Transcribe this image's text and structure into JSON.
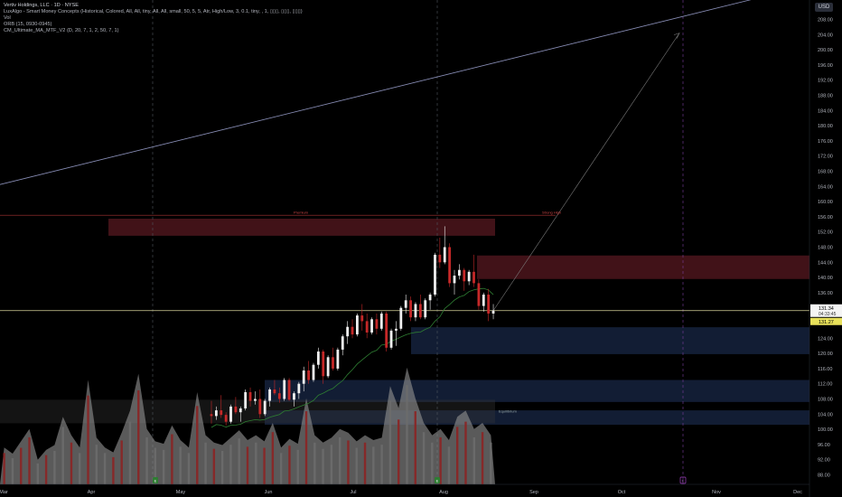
{
  "legend": {
    "title": "Vertiv Holdings, LLC · 1D · NYSE",
    "line1": "LuxAlgo - Smart Money Concepts (Historical, Colored, All, All, tiny, All, All, small, 50, 5, 5, Atr, High/Low, 3, 0.1, tiny, , 1, ▯▯▯, ▯▯▯, ▯▯▯)",
    "line2": "Vol",
    "line3": "ORB (15, 0930-0945)",
    "line4": "CM_Ultimate_MA_MTF_V2 (D, 20, 7, 1, 2, 50, 7, 1)"
  },
  "currency_button": "USD",
  "colors": {
    "bull": "#f0f0f0",
    "bear": "#c62828",
    "supply_zone": "#5c1a22",
    "demand_zone": "#1a2a4a",
    "ma_line": "#2e7d32",
    "trend_line": "#8a8fb8",
    "current_price_line": "#d8d49a",
    "volume_red": "#8b2323",
    "volume_grey": "#8a8a8a"
  },
  "chart_data": {
    "type": "candlestick",
    "ticker": "VRT",
    "exchange": "NYSE",
    "interval": "1D",
    "ylim": [
      86,
      210
    ],
    "y_ticks": [
      "88.00",
      "92.00",
      "96.00",
      "100.00",
      "104.00",
      "108.00",
      "112.00",
      "116.00",
      "120.00",
      "124.00",
      "128.00",
      "132.00",
      "136.00",
      "140.00",
      "144.00",
      "148.00",
      "152.00",
      "156.00",
      "160.00",
      "164.00",
      "168.00",
      "172.00",
      "176.00",
      "180.00",
      "184.00",
      "188.00",
      "192.00",
      "196.00",
      "200.00",
      "204.00",
      "208.00"
    ],
    "x_ticks": [
      "Mar",
      "Apr",
      "May",
      "Jun",
      "Jul",
      "Aug",
      "Sep",
      "Oct",
      "Nov",
      "Dec"
    ],
    "price_labels": {
      "last": "131.34",
      "countdown": "04:33:45",
      "yellow": "131.27"
    },
    "zone_labels": {
      "premium": "Premium",
      "equilibrium": "Equilibrium",
      "strong_high": "Strong High"
    },
    "flag_labels": [
      "E",
      "E",
      "E"
    ],
    "zones": [
      {
        "kind": "supply",
        "top": 155.5,
        "bottom": 151.0
      },
      {
        "kind": "supply",
        "top": 145.8,
        "bottom": 139.6
      },
      {
        "kind": "demand",
        "top": 126.9,
        "bottom": 119.8
      },
      {
        "kind": "demand",
        "top": 113.0,
        "bottom": 107.2
      },
      {
        "kind": "demand",
        "top": 105.0,
        "bottom": 101.2
      },
      {
        "kind": "grey",
        "top": 107.8,
        "bottom": 101.6
      }
    ],
    "levels": {
      "premium_line": 156.4,
      "current_price": 131.27
    },
    "trend_line": {
      "start_price": 164.5,
      "end_price": 217.0
    },
    "projection": {
      "target_price": 204.4
    },
    "candles": [
      [
        104,
        107.5,
        101.5,
        103.5
      ],
      [
        103.5,
        106,
        102.5,
        105
      ],
      [
        105,
        109,
        103,
        103.8
      ],
      [
        103.8,
        104.5,
        101,
        102
      ],
      [
        102,
        106.5,
        101.5,
        106
      ],
      [
        106,
        108.5,
        104,
        104.5
      ],
      [
        104.5,
        106,
        102,
        105.5
      ],
      [
        105.5,
        110.5,
        105,
        109.8
      ],
      [
        109.8,
        111,
        106,
        107.5
      ],
      [
        107.5,
        110,
        106.5,
        108
      ],
      [
        108,
        110.5,
        103,
        104
      ],
      [
        104,
        108,
        103.5,
        107.5
      ],
      [
        107.5,
        111,
        106,
        110.5
      ],
      [
        110.5,
        113,
        109,
        109.5
      ],
      [
        109.5,
        111,
        107,
        108
      ],
      [
        108,
        113.5,
        107.5,
        113
      ],
      [
        113,
        113.5,
        107.5,
        107.8
      ],
      [
        107.8,
        110,
        106,
        109.5
      ],
      [
        109.5,
        112.5,
        108,
        112
      ],
      [
        112,
        116.5,
        110,
        115.5
      ],
      [
        115.5,
        118,
        112,
        113
      ],
      [
        113,
        117.5,
        112.5,
        117
      ],
      [
        117,
        121.5,
        116,
        120.5
      ],
      [
        120.5,
        121,
        112,
        114
      ],
      [
        114,
        119.5,
        113.5,
        119
      ],
      [
        119,
        121.5,
        115.5,
        116
      ],
      [
        116,
        121.5,
        115.5,
        121
      ],
      [
        121,
        125,
        119.5,
        124.5
      ],
      [
        124.5,
        128.5,
        122.5,
        127
      ],
      [
        127,
        129,
        124,
        125
      ],
      [
        125,
        130.5,
        124.5,
        130
      ],
      [
        130,
        133,
        126,
        128.5
      ],
      [
        128.5,
        130.5,
        124,
        125.5
      ],
      [
        125.5,
        129.5,
        125,
        129
      ],
      [
        129,
        130.5,
        125,
        126.5
      ],
      [
        126.5,
        131,
        126,
        130.5
      ],
      [
        130.5,
        131,
        120.5,
        121.5
      ],
      [
        121.5,
        126.5,
        121,
        126
      ],
      [
        126,
        128.5,
        122,
        126.5
      ],
      [
        126.5,
        132.5,
        126,
        132
      ],
      [
        132,
        135.5,
        130.5,
        134
      ],
      [
        134,
        135,
        128.5,
        129.5
      ],
      [
        129.5,
        133.5,
        128.5,
        133
      ],
      [
        133,
        135.5,
        129,
        129.5
      ],
      [
        129.5,
        134.5,
        129,
        134
      ],
      [
        134,
        136,
        131.5,
        135.5
      ],
      [
        135.5,
        146.5,
        135,
        146
      ],
      [
        146,
        150.5,
        142.5,
        144
      ],
      [
        144,
        153.5,
        143.5,
        148
      ],
      [
        148,
        149,
        137.5,
        138.5
      ],
      [
        138.5,
        142,
        135.5,
        140.5
      ],
      [
        140.5,
        143.5,
        139.5,
        142
      ],
      [
        142,
        142.5,
        136.5,
        139
      ],
      [
        139,
        142,
        138,
        141.5
      ],
      [
        141.5,
        146,
        137.5,
        138.5
      ],
      [
        138.5,
        139.5,
        131.5,
        132.5
      ],
      [
        132.5,
        136,
        131,
        135.5
      ],
      [
        135.5,
        137,
        128.5,
        130.5
      ],
      [
        130.5,
        133,
        129,
        131.3
      ]
    ],
    "volume": [
      0.3,
      0.25,
      0.35,
      0.45,
      0.2,
      0.28,
      0.32,
      0.55,
      0.4,
      0.3,
      0.85,
      0.38,
      0.3,
      0.26,
      0.42,
      0.6,
      0.9,
      0.45,
      0.35,
      0.33,
      0.48,
      0.36,
      0.3,
      0.75,
      0.4,
      0.34,
      0.32,
      0.38,
      0.44,
      0.36,
      0.4,
      0.35,
      0.5,
      0.3,
      0.37,
      0.33,
      0.7,
      0.4,
      0.34,
      0.38,
      0.45,
      0.42,
      0.35,
      0.4,
      0.36,
      0.38,
      0.8,
      0.62,
      0.95,
      0.7,
      0.5,
      0.4,
      0.45,
      0.36,
      0.55,
      0.6,
      0.45,
      0.5,
      0.4
    ]
  }
}
